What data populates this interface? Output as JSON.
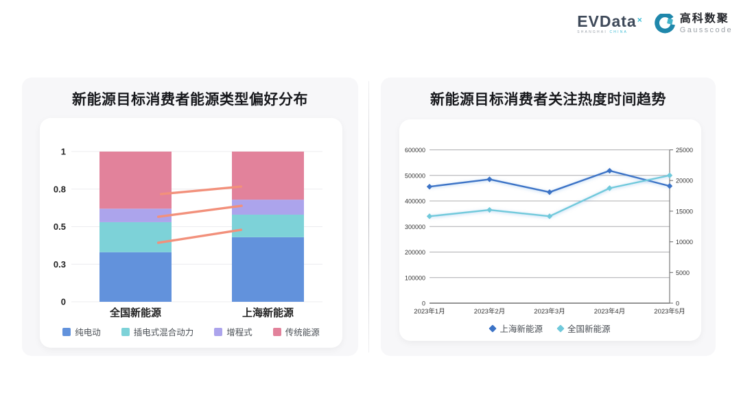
{
  "header": {
    "evdata": {
      "name": "EVData",
      "sup": "×",
      "tagline_left": "SHANGHAI",
      "tagline_right": "CHINA"
    },
    "gausscode": {
      "cn": "高科数聚",
      "en": "Gausscode"
    }
  },
  "cards": {
    "left": {
      "title": "新能源目标消费者能源类型偏好分布"
    },
    "right": {
      "title": "新能源目标消费者关注热度时间趋势"
    }
  },
  "chart_data": [
    {
      "type": "bar",
      "stacked": true,
      "title": "新能源目标消费者能源类型偏好分布",
      "categories": [
        "全国新能源",
        "上海新能源"
      ],
      "series": [
        {
          "name": "纯电动",
          "color": "#6292DC",
          "values": [
            0.33,
            0.43
          ]
        },
        {
          "name": "插电式混合动力",
          "color": "#7DD2D8",
          "values": [
            0.2,
            0.15
          ]
        },
        {
          "name": "增程式",
          "color": "#ACA4EC",
          "values": [
            0.09,
            0.1
          ]
        },
        {
          "name": "传统能源",
          "color": "#E2829B",
          "values": [
            0.38,
            0.32
          ]
        }
      ],
      "ylim": [
        0,
        1
      ],
      "yticks": {
        "values": [
          0,
          0.25,
          0.5,
          0.75,
          1
        ],
        "labels": [
          "0",
          "0.3",
          "0.5",
          "0.8",
          "1"
        ]
      },
      "grid": true,
      "legend_position": "bottom",
      "annotation_lines": {
        "color": "#F2907B",
        "segments": [
          {
            "x1": 0.357,
            "y1": 0.717,
            "x2": 0.676,
            "y2": 0.767
          },
          {
            "x1": 0.346,
            "y1": 0.566,
            "x2": 0.678,
            "y2": 0.639
          },
          {
            "x1": 0.346,
            "y1": 0.393,
            "x2": 0.676,
            "y2": 0.479
          }
        ]
      }
    },
    {
      "type": "line",
      "title": "新能源目标消费者关注热度时间趋势",
      "x": [
        "2023年1月",
        "2023年2月",
        "2023年3月",
        "2023年4月",
        "2023年5月"
      ],
      "series": [
        {
          "name": "上海新能源",
          "axis": "right",
          "color": "#3C73C6",
          "marker": "diamond",
          "values": [
            19000,
            20200,
            18100,
            21600,
            19100
          ]
        },
        {
          "name": "全国新能源",
          "axis": "left",
          "color": "#70C9DB",
          "marker": "diamond",
          "values": [
            340000,
            365000,
            340000,
            450000,
            500000
          ]
        }
      ],
      "left_axis": {
        "min": 0,
        "max": 600000,
        "tick_labels": [
          "0",
          "100000",
          "200000",
          "300000",
          "400000",
          "500000",
          "600000"
        ]
      },
      "right_axis": {
        "min": 0,
        "max": 25000,
        "tick_labels": [
          "0",
          "5000",
          "10000",
          "15000",
          "20000",
          "25000"
        ]
      },
      "grid": true,
      "legend_position": "bottom"
    }
  ]
}
